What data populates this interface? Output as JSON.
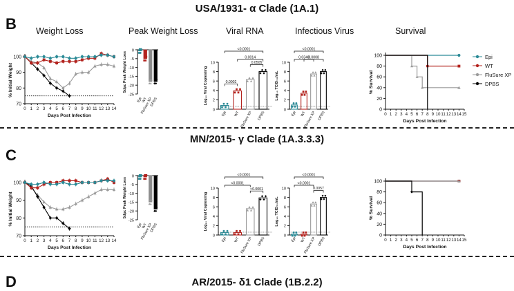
{
  "sections": [
    {
      "title": "USA/1931- α Clade (1A.1)",
      "letter": "B"
    },
    {
      "title": "MN/2015- γ Clade (1A.3.3.3)",
      "letter": "C"
    },
    {
      "title": "AR/2015- δ1 Clade (1B.2.2)",
      "letter": "D"
    }
  ],
  "panel_titles": {
    "weight": "Weight Loss",
    "peak": "Peak Weight Loss",
    "rna": "Viral RNA",
    "virus": "Infectious Virus",
    "survival": "Survival"
  },
  "colors": {
    "Epi": "#2a8a96",
    "WT": "#b3231e",
    "FluSure XP": "#9a9a9a",
    "DPBS": "#000000"
  },
  "legend": [
    "Epi",
    "WT",
    "FluSure XP",
    "DPBS"
  ],
  "chart_data": [
    {
      "type": "line",
      "section": 0,
      "panel": "weight",
      "xlabel": "Days Post Infection",
      "ylabel": "% Initial Weight",
      "xlim": [
        0,
        14
      ],
      "ylim": [
        70,
        100
      ],
      "yticks": [
        70,
        80,
        90,
        100
      ],
      "threshold": 75,
      "x": [
        0,
        1,
        2,
        3,
        4,
        5,
        6,
        7,
        8,
        9,
        10,
        11,
        12,
        13,
        14
      ],
      "series": [
        {
          "name": "Epi",
          "values": [
            100,
            99,
            100,
            100,
            99,
            100,
            100,
            99,
            99,
            100,
            100,
            100,
            101,
            101,
            100
          ]
        },
        {
          "name": "WT",
          "values": [
            100,
            96,
            96,
            98,
            97,
            96,
            97,
            97,
            97,
            98,
            99,
            99,
            102,
            101,
            100
          ]
        },
        {
          "name": "FluSure XP",
          "values": [
            100,
            97,
            96,
            93,
            86,
            84,
            80,
            83,
            89,
            90,
            90,
            94,
            95,
            95,
            94
          ]
        },
        {
          "name": "DPBS",
          "values": [
            100,
            96,
            92,
            88,
            83,
            80,
            78,
            75,
            null,
            null,
            null,
            null,
            null,
            null,
            null
          ]
        }
      ]
    },
    {
      "type": "bar",
      "section": 0,
      "panel": "peak",
      "ylabel": "5dpc Peak Weight Loss",
      "ylim": [
        -25,
        0
      ],
      "yticks": [
        0,
        -5,
        -10,
        -15,
        -20,
        -25
      ],
      "categories": [
        "Epi",
        "WT",
        "FluSure XP",
        "DPBS"
      ],
      "values": [
        -0.7,
        -5,
        -18,
        -18
      ]
    },
    {
      "type": "bar",
      "section": 0,
      "panel": "rna",
      "ylabel": "Log₁₀ Viral Copies/mg",
      "ylim": [
        0,
        10
      ],
      "yticks": [
        0,
        2,
        4,
        6,
        8,
        10
      ],
      "categories": [
        "Epi",
        "WT",
        "FluSure XP",
        "DPBS"
      ],
      "values": [
        0.8,
        3.9,
        6.3,
        8.0
      ],
      "brackets": [
        {
          "from": 0,
          "to": 3,
          "label": "<0.0001"
        },
        {
          "from": 1,
          "to": 3,
          "label": "0.0014"
        },
        {
          "from": 0,
          "to": 1,
          "label": "0.0002"
        },
        {
          "from": 2,
          "to": 3,
          "label": "0.0505"
        }
      ]
    },
    {
      "type": "bar",
      "section": 0,
      "panel": "virus",
      "ylabel": "Log₁₀ TCID₅₀/mL",
      "ylim": [
        0,
        10
      ],
      "yticks": [
        0,
        2,
        4,
        6,
        8,
        10
      ],
      "categories": [
        "Epi",
        "WT",
        "FluSure XP",
        "DPBS"
      ],
      "values": [
        0.9,
        3.4,
        7.5,
        8.0
      ],
      "brackets": [
        {
          "from": 0,
          "to": 3,
          "label": "<0.0001"
        },
        {
          "from": 1,
          "to": 3,
          "label": "0.0008"
        },
        {
          "from": 0,
          "to": 2,
          "label": "0.0340"
        }
      ]
    },
    {
      "type": "line",
      "section": 0,
      "panel": "survival",
      "xlabel": "Days Post Infection",
      "ylabel": "% Survival",
      "xlim": [
        0,
        15
      ],
      "ylim": [
        0,
        100
      ],
      "yticks": [
        0,
        20,
        40,
        60,
        80,
        100
      ],
      "series": [
        {
          "name": "Epi",
          "steps": [
            [
              0,
              100
            ],
            [
              14,
              100
            ]
          ]
        },
        {
          "name": "WT",
          "steps": [
            [
              0,
              100
            ],
            [
              8,
              100
            ],
            [
              8,
              80
            ],
            [
              14,
              80
            ]
          ]
        },
        {
          "name": "FluSure XP",
          "steps": [
            [
              0,
              100
            ],
            [
              5,
              100
            ],
            [
              5,
              80
            ],
            [
              6,
              80
            ],
            [
              6,
              60
            ],
            [
              7,
              60
            ],
            [
              7,
              40
            ],
            [
              14,
              40
            ]
          ]
        },
        {
          "name": "DPBS",
          "steps": [
            [
              0,
              100
            ],
            [
              8,
              100
            ],
            [
              8,
              0
            ]
          ]
        }
      ]
    },
    {
      "type": "line",
      "section": 1,
      "panel": "weight",
      "xlabel": "Days Post Infection",
      "ylabel": "% Initial Weight",
      "xlim": [
        0,
        14
      ],
      "ylim": [
        70,
        100
      ],
      "yticks": [
        70,
        80,
        90,
        100
      ],
      "threshold": 75,
      "x": [
        0,
        1,
        2,
        3,
        4,
        5,
        6,
        7,
        8,
        9,
        10,
        11,
        12,
        13,
        14
      ],
      "series": [
        {
          "name": "Epi",
          "values": [
            100,
            99,
            99,
            100,
            99,
            99,
            100,
            99,
            99,
            100,
            100,
            100,
            101,
            101,
            101
          ]
        },
        {
          "name": "WT",
          "values": [
            100,
            97,
            97,
            99,
            100,
            100,
            101,
            101,
            101,
            100,
            100,
            100,
            101,
            102,
            100
          ]
        },
        {
          "name": "FluSure XP",
          "values": [
            100,
            97,
            93,
            89,
            86,
            85,
            85,
            86,
            88,
            90,
            92,
            94,
            96,
            96,
            96
          ]
        },
        {
          "name": "DPBS",
          "values": [
            100,
            98,
            92,
            86,
            80,
            80,
            77,
            74,
            null,
            null,
            null,
            null,
            null,
            null,
            null
          ]
        }
      ]
    },
    {
      "type": "bar",
      "section": 1,
      "panel": "peak",
      "ylabel": "5dpc Peak Weight Loss",
      "ylim": [
        -25,
        0
      ],
      "yticks": [
        0,
        -5,
        -10,
        -15,
        -20,
        -25
      ],
      "categories": [
        "Epi",
        "WT",
        "FluSure XP",
        "DPBS"
      ],
      "values": [
        -0.8,
        -0.8,
        -15,
        -19
      ]
    },
    {
      "type": "bar",
      "section": 1,
      "panel": "rna",
      "ylabel": "Log₁₀ Viral Copies/mg",
      "ylim": [
        0,
        10
      ],
      "yticks": [
        0,
        2,
        4,
        6,
        8,
        10
      ],
      "categories": [
        "Epi",
        "WT",
        "FluSure XP",
        "DPBS"
      ],
      "values": [
        0.5,
        0.5,
        5.6,
        7.9
      ],
      "brackets": [
        {
          "from": 0,
          "to": 3,
          "label": "<0.0001"
        },
        {
          "from": 0,
          "to": 2,
          "label": "<0.0001"
        },
        {
          "from": 2,
          "to": 3,
          "label": "<0.0001"
        }
      ]
    },
    {
      "type": "bar",
      "section": 1,
      "panel": "virus",
      "ylabel": "Log₁₀ TCID₅₀/mL",
      "ylim": [
        0,
        10
      ],
      "yticks": [
        0,
        2,
        4,
        6,
        8,
        10
      ],
      "categories": [
        "Epi",
        "WT",
        "FluSure XP",
        "DPBS"
      ],
      "values": [
        0.2,
        0.2,
        6.6,
        8.0
      ],
      "brackets": [
        {
          "from": 0,
          "to": 3,
          "label": "<0.0001"
        },
        {
          "from": 0,
          "to": 2,
          "label": "<0.0001"
        },
        {
          "from": 2,
          "to": 3,
          "label": "0.0057"
        }
      ]
    },
    {
      "type": "line",
      "section": 1,
      "panel": "survival",
      "xlabel": "Days Post Infection",
      "ylabel": "% Survival",
      "xlim": [
        0,
        15
      ],
      "ylim": [
        0,
        100
      ],
      "yticks": [
        0,
        20,
        40,
        60,
        80,
        100
      ],
      "series": [
        {
          "name": "Epi",
          "steps": [
            [
              0,
              100
            ],
            [
              14,
              100
            ]
          ]
        },
        {
          "name": "WT",
          "steps": [
            [
              0,
              100
            ],
            [
              14,
              100
            ]
          ]
        },
        {
          "name": "FluSure XP",
          "steps": [
            [
              0,
              100
            ],
            [
              14,
              100
            ]
          ]
        },
        {
          "name": "DPBS",
          "steps": [
            [
              0,
              100
            ],
            [
              5,
              100
            ],
            [
              5,
              80
            ],
            [
              7,
              80
            ],
            [
              7,
              0
            ]
          ]
        }
      ]
    }
  ]
}
